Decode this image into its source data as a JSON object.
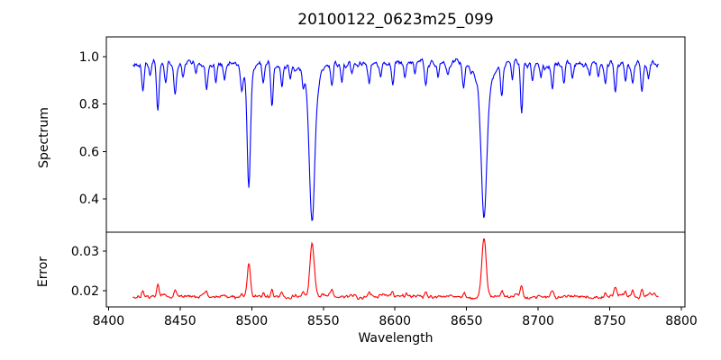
{
  "figure": {
    "title": "20100122_0623m25_099",
    "spectrum_ylabel": "Spectrum",
    "error_ylabel": "Error",
    "xlabel": "Wavelength",
    "background_color": "#ffffff",
    "axis_color": "#000000"
  },
  "chart_data": {
    "type": "line",
    "title": "20100122_0623m25_099",
    "xlabel": "Wavelength",
    "xlim": [
      8398.5,
      8802.5
    ],
    "xticks": [
      8400,
      8450,
      8500,
      8550,
      8600,
      8650,
      8700,
      8750,
      8800
    ],
    "xtick_labels": [
      "8400",
      "8450",
      "8500",
      "8550",
      "8600",
      "8650",
      "8700",
      "8750",
      "8800"
    ],
    "x_start": 8417,
    "x_end": 8784,
    "x_step": 0.5,
    "noise_seed": 20100122,
    "grid": false,
    "legend": "none",
    "panels": [
      {
        "name": "spectrum",
        "ylabel": "Spectrum",
        "line_color": "#0000ff",
        "ylim": [
          0.2595,
          1.0835
        ],
        "yticks": [
          0.4,
          0.6,
          0.8,
          1.0
        ],
        "ytick_labels": [
          "0.4",
          "0.6",
          "0.8",
          "1.0"
        ],
        "continuum": 0.968,
        "noise_fine_amp": 0.018,
        "noise_coarse_amp": 0.035,
        "absorption_lines_format": "[center_wavelength, depth, sigma, wing_depth?, wing_sigma?]",
        "absorption_lines": [
          [
            8424,
            0.1,
            0.9
          ],
          [
            8429,
            0.06,
            0.7
          ],
          [
            8434.5,
            0.19,
            0.8
          ],
          [
            8440,
            0.07,
            0.7
          ],
          [
            8446.5,
            0.12,
            0.8
          ],
          [
            8452,
            0.06,
            0.7
          ],
          [
            8461,
            0.05,
            0.7
          ],
          [
            8468.5,
            0.1,
            0.8
          ],
          [
            8475,
            0.07,
            0.7
          ],
          [
            8481,
            0.06,
            0.7
          ],
          [
            8493,
            0.09,
            0.7
          ],
          [
            8498,
            0.45,
            1.1,
            0.07,
            3.0
          ],
          [
            8508,
            0.09,
            0.7
          ],
          [
            8514.2,
            0.17,
            0.8
          ],
          [
            8521,
            0.08,
            0.7
          ],
          [
            8527,
            0.06,
            0.7
          ],
          [
            8536,
            0.07,
            0.7
          ],
          [
            8542.1,
            0.54,
            1.8,
            0.12,
            5.0
          ],
          [
            8556,
            0.09,
            0.8
          ],
          [
            8563,
            0.06,
            0.7
          ],
          [
            8570,
            0.05,
            0.7
          ],
          [
            8582,
            0.09,
            0.8
          ],
          [
            8590,
            0.05,
            0.7
          ],
          [
            8598.5,
            0.09,
            0.8
          ],
          [
            8607,
            0.06,
            0.7
          ],
          [
            8614,
            0.05,
            0.7
          ],
          [
            8621.5,
            0.1,
            0.8
          ],
          [
            8630,
            0.06,
            0.7
          ],
          [
            8637,
            0.05,
            0.7
          ],
          [
            8648,
            0.1,
            0.8
          ],
          [
            8662.2,
            0.51,
            1.9,
            0.12,
            5.0
          ],
          [
            8674.5,
            0.12,
            0.8
          ],
          [
            8682,
            0.07,
            0.7
          ],
          [
            8688.5,
            0.22,
            0.8
          ],
          [
            8696,
            0.06,
            0.7
          ],
          [
            8702,
            0.05,
            0.7
          ],
          [
            8710,
            0.1,
            0.8
          ],
          [
            8718,
            0.08,
            0.7
          ],
          [
            8724,
            0.06,
            0.7
          ],
          [
            8736,
            0.06,
            0.7
          ],
          [
            8742,
            0.05,
            0.7
          ],
          [
            8747,
            0.07,
            0.7
          ],
          [
            8754,
            0.11,
            0.8
          ],
          [
            8761,
            0.07,
            0.7
          ],
          [
            8766,
            0.06,
            0.7
          ],
          [
            8772.5,
            0.11,
            0.8
          ],
          [
            8777,
            0.06,
            0.7
          ]
        ]
      },
      {
        "name": "error",
        "ylabel": "Error",
        "line_color": "#ff0000",
        "ylim": [
          0.0159,
          0.0348
        ],
        "yticks": [
          0.02,
          0.03
        ],
        "ytick_labels": [
          "0.02",
          "0.03"
        ],
        "baseline": 0.0185,
        "noise_fine_amp": 0.0006,
        "noise_coarse_amp": 0.0012,
        "peaks_format": "[center_wavelength, height_above_baseline, sigma]",
        "peaks": [
          [
            8424,
            0.0018,
            0.9
          ],
          [
            8434.5,
            0.003,
            0.8
          ],
          [
            8446.5,
            0.0018,
            0.8
          ],
          [
            8468.5,
            0.0013,
            0.8
          ],
          [
            8493,
            0.001,
            0.7
          ],
          [
            8498,
            0.0085,
            1.1
          ],
          [
            8508,
            0.001,
            0.7
          ],
          [
            8514.2,
            0.002,
            0.8
          ],
          [
            8521,
            0.0012,
            0.7
          ],
          [
            8536,
            0.001,
            0.7
          ],
          [
            8542.1,
            0.0138,
            1.5
          ],
          [
            8556,
            0.0012,
            0.8
          ],
          [
            8582,
            0.0012,
            0.8
          ],
          [
            8598.5,
            0.001,
            0.8
          ],
          [
            8621.5,
            0.0011,
            0.8
          ],
          [
            8648,
            0.0012,
            0.8
          ],
          [
            8662.2,
            0.0146,
            1.5
          ],
          [
            8674.5,
            0.0013,
            0.8
          ],
          [
            8688.5,
            0.0022,
            0.8
          ],
          [
            8710,
            0.0012,
            0.8
          ],
          [
            8747,
            0.001,
            0.7
          ],
          [
            8754,
            0.0022,
            0.8
          ],
          [
            8761,
            0.0013,
            0.7
          ],
          [
            8766,
            0.0017,
            0.7
          ],
          [
            8772.5,
            0.0018,
            0.8
          ]
        ]
      }
    ],
    "key_features": {
      "strong_absorption_minima": [
        {
          "wavelength": 8498,
          "flux_min": 0.46
        },
        {
          "wavelength": 8542,
          "flux_min": 0.3
        },
        {
          "wavelength": 8662,
          "flux_min": 0.33
        }
      ],
      "error_peak_values": [
        {
          "wavelength": 8498,
          "value": 0.027
        },
        {
          "wavelength": 8542,
          "value": 0.032
        },
        {
          "wavelength": 8662,
          "value": 0.033
        }
      ],
      "continuum_level": 0.97,
      "error_baseline": 0.019
    }
  }
}
